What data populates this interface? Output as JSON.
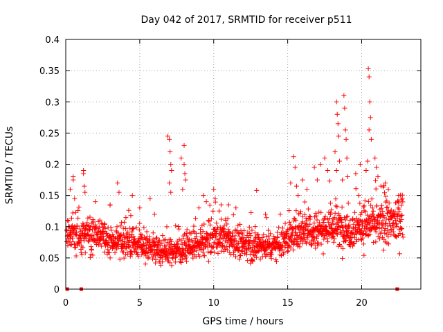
{
  "chart_data": {
    "type": "scatter",
    "title": "Day 042 of 2017, SRMTID for receiver p511",
    "xlabel": "GPS time / hours",
    "ylabel": "SRMTID / TECUs",
    "xlim": [
      0,
      24
    ],
    "ylim": [
      0,
      0.4
    ],
    "xticks": [
      0,
      5,
      10,
      15,
      20
    ],
    "xtick_labels": [
      "0",
      "5",
      "10",
      "15",
      "20"
    ],
    "yticks": [
      0,
      0.05,
      0.1,
      0.15,
      0.2,
      0.25,
      0.3,
      0.35,
      0.4
    ],
    "ytick_labels": [
      "0",
      "0.05",
      "0.1",
      "0.15",
      "0.2",
      "0.25",
      "0.3",
      "0.35",
      "0.4"
    ],
    "grid": true,
    "marker": "plus",
    "color": "#ff0000",
    "zero_points": [
      0.1,
      1.05,
      22.4
    ],
    "baseline_profile": {
      "hours": [
        0,
        2,
        4,
        6,
        7,
        8,
        9,
        10,
        11,
        12,
        13,
        14,
        15,
        16,
        17,
        18,
        19,
        20,
        21,
        22,
        22.8
      ],
      "median": [
        0.085,
        0.085,
        0.075,
        0.065,
        0.06,
        0.065,
        0.07,
        0.085,
        0.08,
        0.07,
        0.07,
        0.07,
        0.08,
        0.1,
        0.095,
        0.1,
        0.095,
        0.1,
        0.105,
        0.105,
        0.12
      ]
    },
    "series": [
      {
        "name": "SRMTID",
        "points": [
          [
            0.3,
            0.16
          ],
          [
            0.5,
            0.18
          ],
          [
            0.5,
            0.175
          ],
          [
            0.6,
            0.145
          ],
          [
            1.2,
            0.19
          ],
          [
            1.2,
            0.185
          ],
          [
            1.25,
            0.165
          ],
          [
            1.3,
            0.155
          ],
          [
            3.5,
            0.17
          ],
          [
            3.6,
            0.155
          ],
          [
            3.0,
            0.135
          ],
          [
            4.5,
            0.15
          ],
          [
            5.7,
            0.145
          ],
          [
            6.9,
            0.245
          ],
          [
            7.0,
            0.24
          ],
          [
            7.05,
            0.22
          ],
          [
            7.1,
            0.2
          ],
          [
            7.15,
            0.19
          ],
          [
            7.0,
            0.17
          ],
          [
            7.1,
            0.155
          ],
          [
            7.8,
            0.21
          ],
          [
            8.0,
            0.2
          ],
          [
            8.0,
            0.23
          ],
          [
            8.05,
            0.185
          ],
          [
            8.1,
            0.175
          ],
          [
            7.9,
            0.16
          ],
          [
            9.3,
            0.15
          ],
          [
            9.5,
            0.14
          ],
          [
            10.0,
            0.16
          ],
          [
            10.1,
            0.145
          ],
          [
            10.5,
            0.135
          ],
          [
            12.9,
            0.158
          ],
          [
            11.0,
            0.135
          ],
          [
            15.4,
            0.212
          ],
          [
            15.5,
            0.195
          ],
          [
            15.2,
            0.17
          ],
          [
            15.6,
            0.165
          ],
          [
            15.7,
            0.15
          ],
          [
            16.0,
            0.175
          ],
          [
            16.3,
            0.16
          ],
          [
            16.8,
            0.195
          ],
          [
            17.0,
            0.175
          ],
          [
            17.2,
            0.2
          ],
          [
            17.5,
            0.21
          ],
          [
            17.7,
            0.19
          ],
          [
            18.3,
            0.3
          ],
          [
            18.35,
            0.28
          ],
          [
            18.4,
            0.265
          ],
          [
            18.45,
            0.245
          ],
          [
            18.2,
            0.22
          ],
          [
            18.5,
            0.205
          ],
          [
            18.3,
            0.19
          ],
          [
            18.8,
            0.31
          ],
          [
            18.85,
            0.29
          ],
          [
            18.9,
            0.255
          ],
          [
            18.95,
            0.24
          ],
          [
            19.0,
            0.21
          ],
          [
            19.05,
            0.18
          ],
          [
            18.7,
            0.175
          ],
          [
            20.45,
            0.353
          ],
          [
            20.5,
            0.34
          ],
          [
            20.55,
            0.3
          ],
          [
            20.6,
            0.275
          ],
          [
            20.5,
            0.255
          ],
          [
            20.65,
            0.24
          ],
          [
            20.4,
            0.205
          ],
          [
            20.3,
            0.19
          ],
          [
            20.9,
            0.21
          ],
          [
            21.0,
            0.195
          ],
          [
            21.1,
            0.18
          ],
          [
            21.3,
            0.165
          ],
          [
            21.8,
            0.16
          ],
          [
            22.5,
            0.15
          ],
          [
            2.0,
            0.14
          ],
          [
            5.0,
            0.13
          ],
          [
            6.0,
            0.12
          ],
          [
            9.0,
            0.13
          ],
          [
            11.5,
            0.13
          ],
          [
            13.5,
            0.12
          ],
          [
            14.5,
            0.12
          ],
          [
            19.6,
            0.185
          ],
          [
            19.8,
            0.15
          ],
          [
            19.9,
            0.2
          ],
          [
            21.6,
            0.17
          ],
          [
            22.1,
            0.12
          ]
        ]
      }
    ]
  }
}
